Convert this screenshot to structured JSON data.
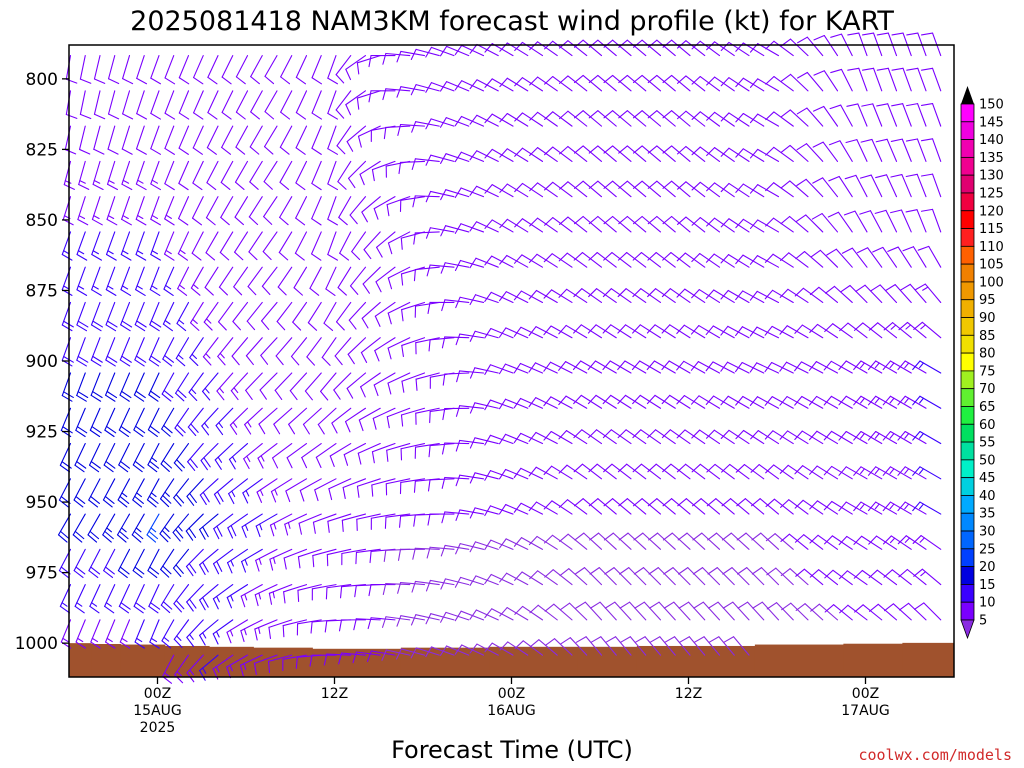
{
  "chart_data": {
    "type": "wind-barb-time-height",
    "title": "2025081418 NAM3KM forecast wind profile (kt) for KART",
    "xlabel": "Forecast Time (UTC)",
    "ylabel": "",
    "y_axis": {
      "unit": "hPa",
      "range": [
        1012,
        788
      ],
      "ticks": [
        800,
        825,
        850,
        875,
        900,
        925,
        950,
        975,
        1000
      ]
    },
    "x_axis": {
      "unit": "hours since 2025-08-14 18Z",
      "range": [
        0,
        60
      ],
      "ticks": [
        {
          "hour": 6,
          "lines": [
            "00Z",
            "15AUG",
            "2025"
          ]
        },
        {
          "hour": 18,
          "lines": [
            "12Z"
          ]
        },
        {
          "hour": 30,
          "lines": [
            "00Z",
            "16AUG"
          ]
        },
        {
          "hour": 42,
          "lines": [
            "12Z"
          ]
        },
        {
          "hour": 54,
          "lines": [
            "00Z",
            "17AUG"
          ]
        }
      ]
    },
    "colorbar": {
      "unit": "kt",
      "levels": [
        5,
        10,
        15,
        20,
        25,
        30,
        35,
        40,
        45,
        50,
        55,
        60,
        65,
        70,
        75,
        80,
        85,
        90,
        95,
        100,
        105,
        110,
        115,
        120,
        125,
        130,
        135,
        140,
        145,
        150
      ],
      "colors": [
        "#8a2be2",
        "#7a00ff",
        "#3a00ff",
        "#0000e0",
        "#0040ff",
        "#0066ff",
        "#0088ff",
        "#00aaff",
        "#00d0e0",
        "#00f0c8",
        "#00e0a0",
        "#00e060",
        "#20f040",
        "#60f030",
        "#a0f020",
        "#ffff00",
        "#f0e000",
        "#f0c800",
        "#f0b000",
        "#f09800",
        "#f08000",
        "#ff6000",
        "#ff2020",
        "#ff0000",
        "#f00040",
        "#e00070",
        "#f00090",
        "#f000b0",
        "#f000e0",
        "#ff00ff"
      ]
    },
    "terrain": {
      "color": "#a0522d",
      "segments": [
        {
          "hours": [
            0,
            1.5
          ],
          "sfc_pressure": 1000
        },
        {
          "hours": [
            1.5,
            3.5
          ],
          "sfc_pressure": 1000.3
        },
        {
          "hours": [
            3.5,
            6.5
          ],
          "sfc_pressure": 1000.5
        },
        {
          "hours": [
            6.5,
            9.5
          ],
          "sfc_pressure": 1001
        },
        {
          "hours": [
            9.5,
            12.5
          ],
          "sfc_pressure": 1001.3
        },
        {
          "hours": [
            12.5,
            16.5
          ],
          "sfc_pressure": 1001.6
        },
        {
          "hours": [
            16.5,
            22.5
          ],
          "sfc_pressure": 1002
        },
        {
          "hours": [
            22.5,
            28.5
          ],
          "sfc_pressure": 1001.6
        },
        {
          "hours": [
            28.5,
            34.5
          ],
          "sfc_pressure": 1001.3
        },
        {
          "hours": [
            34.5,
            38.5
          ],
          "sfc_pressure": 1001.3
        },
        {
          "hours": [
            38.5,
            46.5
          ],
          "sfc_pressure": 1001
        },
        {
          "hours": [
            46.5,
            52.5
          ],
          "sfc_pressure": 1000.5
        },
        {
          "hours": [
            52.5,
            56.5
          ],
          "sfc_pressure": 1000.2
        },
        {
          "hours": [
            56.5,
            60
          ],
          "sfc_pressure": 999.9
        }
      ]
    },
    "wind_grid": {
      "hours": [
        0,
        1,
        2,
        3,
        4,
        5,
        6,
        7,
        8,
        9,
        10,
        11,
        12,
        13,
        14,
        15,
        16,
        17,
        18,
        19,
        20,
        21,
        22,
        23,
        24,
        25,
        26,
        27,
        28,
        29,
        30,
        31,
        32,
        33,
        34,
        35,
        36,
        37,
        38,
        39,
        40,
        41,
        42,
        43,
        44,
        45,
        46,
        47,
        48,
        49,
        50,
        51,
        52,
        53,
        54,
        55,
        56,
        57,
        58,
        59
      ],
      "levels": [
        787.5,
        800,
        812.5,
        825,
        837.5,
        850,
        862.5,
        875,
        887.5,
        900,
        912.5,
        925,
        937.5,
        950,
        962.5,
        975,
        987.5,
        1000
      ],
      "keypoints": [
        {
          "hour": 0,
          "dir": [
            [
              800,
              190
            ],
            [
              850,
              200
            ],
            [
              900,
              200
            ],
            [
              950,
              210
            ],
            [
              1000,
              200
            ]
          ],
          "spd": [
            [
              800,
              10
            ],
            [
              850,
              15
            ],
            [
              900,
              20
            ],
            [
              950,
              20
            ],
            [
              1000,
              12
            ]
          ]
        },
        {
          "hour": 6,
          "dir": [
            [
              800,
              200
            ],
            [
              850,
              200
            ],
            [
              900,
              205
            ],
            [
              950,
              210
            ],
            [
              1000,
              200
            ]
          ],
          "spd": [
            [
              800,
              10
            ],
            [
              850,
              15
            ],
            [
              900,
              20
            ],
            [
              950,
              25
            ],
            [
              1000,
              12
            ]
          ]
        },
        {
          "hour": 10,
          "dir": [
            [
              800,
              205
            ],
            [
              850,
              210
            ],
            [
              900,
              220
            ],
            [
              950,
              230
            ],
            [
              1000,
              230
            ]
          ],
          "spd": [
            [
              800,
              10
            ],
            [
              850,
              10
            ],
            [
              900,
              15
            ],
            [
              950,
              20
            ],
            [
              1000,
              15
            ]
          ]
        },
        {
          "hour": 14,
          "dir": [
            [
              800,
              210
            ],
            [
              850,
              215
            ],
            [
              900,
              225
            ],
            [
              950,
              240
            ],
            [
              1000,
              250
            ]
          ],
          "spd": [
            [
              800,
              10
            ],
            [
              850,
              10
            ],
            [
              900,
              10
            ],
            [
              950,
              15
            ],
            [
              1000,
              12
            ]
          ]
        },
        {
          "hour": 18,
          "dir": [
            [
              800,
              200
            ],
            [
              850,
              200
            ],
            [
              900,
              220
            ],
            [
              950,
              250
            ],
            [
              1000,
              270
            ]
          ],
          "spd": [
            [
              800,
              10
            ],
            [
              850,
              12
            ],
            [
              900,
              10
            ],
            [
              950,
              10
            ],
            [
              1000,
              10
            ]
          ]
        },
        {
          "hour": 22,
          "dir": [
            [
              800,
              270
            ],
            [
              850,
              230
            ],
            [
              900,
              240
            ],
            [
              950,
              260
            ],
            [
              1000,
              280
            ]
          ],
          "spd": [
            [
              800,
              10
            ],
            [
              850,
              10
            ],
            [
              900,
              10
            ],
            [
              950,
              10
            ],
            [
              1000,
              10
            ]
          ]
        },
        {
          "hour": 26,
          "dir": [
            [
              800,
              290
            ],
            [
              850,
              280
            ],
            [
              900,
              260
            ],
            [
              950,
              270
            ],
            [
              1000,
              290
            ]
          ],
          "spd": [
            [
              800,
              10
            ],
            [
              850,
              10
            ],
            [
              900,
              10
            ],
            [
              950,
              10
            ],
            [
              1000,
              8
            ]
          ]
        },
        {
          "hour": 30,
          "dir": [
            [
              800,
              300
            ],
            [
              850,
              300
            ],
            [
              900,
              290
            ],
            [
              950,
              290
            ],
            [
              1000,
              300
            ]
          ],
          "spd": [
            [
              800,
              10
            ],
            [
              850,
              10
            ],
            [
              900,
              10
            ],
            [
              950,
              10
            ],
            [
              1000,
              8
            ]
          ]
        },
        {
          "hour": 36,
          "dir": [
            [
              800,
              310
            ],
            [
              850,
              310
            ],
            [
              900,
              300
            ],
            [
              950,
              310
            ],
            [
              1000,
              320
            ]
          ],
          "spd": [
            [
              800,
              10
            ],
            [
              850,
              10
            ],
            [
              900,
              10
            ],
            [
              950,
              10
            ],
            [
              1000,
              8
            ]
          ]
        },
        {
          "hour": 42,
          "dir": [
            [
              800,
              310
            ],
            [
              850,
              310
            ],
            [
              900,
              300
            ],
            [
              950,
              310
            ],
            [
              1000,
              320
            ]
          ],
          "spd": [
            [
              800,
              10
            ],
            [
              850,
              10
            ],
            [
              900,
              10
            ],
            [
              950,
              10
            ],
            [
              1000,
              8
            ]
          ]
        },
        {
          "hour": 48,
          "dir": [
            [
              800,
              300
            ],
            [
              850,
              300
            ],
            [
              900,
              295
            ],
            [
              950,
              310
            ],
            [
              1000,
              320
            ]
          ],
          "spd": [
            [
              800,
              10
            ],
            [
              850,
              10
            ],
            [
              900,
              10
            ],
            [
              950,
              10
            ],
            [
              1000,
              8
            ]
          ]
        },
        {
          "hour": 54,
          "dir": [
            [
              800,
              340
            ],
            [
              850,
              330
            ],
            [
              900,
              300
            ],
            [
              950,
              300
            ],
            [
              1000,
              310
            ]
          ],
          "spd": [
            [
              800,
              10
            ],
            [
              850,
              10
            ],
            [
              900,
              12
            ],
            [
              950,
              12
            ],
            [
              1000,
              10
            ]
          ]
        },
        {
          "hour": 59,
          "dir": [
            [
              800,
              340
            ],
            [
              850,
              340
            ],
            [
              900,
              300
            ],
            [
              950,
              300
            ],
            [
              1000,
              320
            ]
          ],
          "spd": [
            [
              800,
              10
            ],
            [
              850,
              10
            ],
            [
              900,
              15
            ],
            [
              950,
              15
            ],
            [
              1000,
              10
            ]
          ]
        }
      ]
    },
    "credit": "coolwx.com/models"
  }
}
